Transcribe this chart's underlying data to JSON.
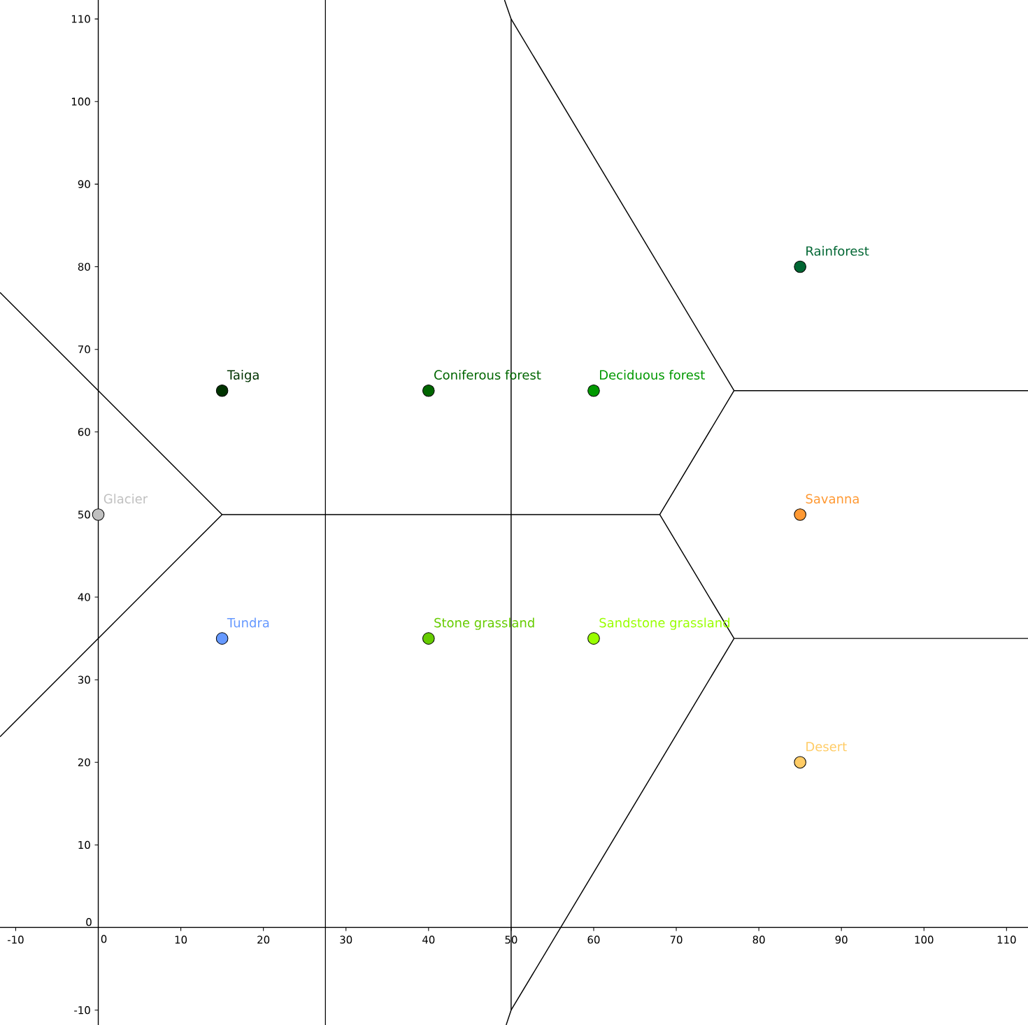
{
  "chart_data": {
    "type": "scatter",
    "xlim": [
      -11.9,
      112.6
    ],
    "ylim": [
      -11.8,
      112.3
    ],
    "xticks": [
      -10,
      0,
      10,
      20,
      30,
      40,
      50,
      60,
      70,
      80,
      90,
      100,
      110
    ],
    "yticks": [
      -10,
      0,
      10,
      20,
      30,
      40,
      50,
      60,
      70,
      80,
      90,
      100,
      110
    ],
    "marker": "circle",
    "series": [
      {
        "name": "Glacier",
        "color": "#c0c0c0",
        "x": [
          0
        ],
        "values": [
          50
        ]
      },
      {
        "name": "Taiga",
        "color": "#003300",
        "x": [
          15
        ],
        "values": [
          65
        ]
      },
      {
        "name": "Tundra",
        "color": "#6699ff",
        "x": [
          15
        ],
        "values": [
          35
        ]
      },
      {
        "name": "Coniferous forest",
        "color": "#006600",
        "x": [
          40
        ],
        "values": [
          65
        ]
      },
      {
        "name": "Stone grassland",
        "color": "#66cc00",
        "x": [
          40
        ],
        "values": [
          35
        ]
      },
      {
        "name": "Deciduous forest",
        "color": "#009900",
        "x": [
          60
        ],
        "values": [
          65
        ]
      },
      {
        "name": "Sandstone grassland",
        "color": "#99ff00",
        "x": [
          60
        ],
        "values": [
          35
        ]
      },
      {
        "name": "Rainforest",
        "color": "#006633",
        "x": [
          85
        ],
        "values": [
          80
        ]
      },
      {
        "name": "Savanna",
        "color": "#ff9933",
        "x": [
          85
        ],
        "values": [
          50
        ]
      },
      {
        "name": "Desert",
        "color": "#ffcc66",
        "x": [
          85
        ],
        "values": [
          20
        ]
      },
      {
        "type": "line",
        "marker": "none",
        "color": "#000000",
        "x": [
          -11.9,
          15,
          68,
          77,
          112.6
        ],
        "values": [
          76.9,
          50,
          50,
          65,
          65
        ]
      },
      {
        "type": "line",
        "marker": "none",
        "color": "#000000",
        "x": [
          -11.9,
          15
        ],
        "values": [
          23.1,
          50
        ]
      },
      {
        "type": "line",
        "marker": "none",
        "color": "#000000",
        "x": [
          68,
          77,
          112.6
        ],
        "values": [
          50,
          35,
          35
        ]
      },
      {
        "type": "line",
        "marker": "none",
        "color": "#000000",
        "x": [
          50,
          77
        ],
        "values": [
          110,
          65
        ]
      },
      {
        "type": "line",
        "marker": "none",
        "color": "#000000",
        "x": [
          49.2,
          50,
          50,
          49.4
        ],
        "values": [
          112.3,
          110,
          -10,
          -11.8
        ]
      },
      {
        "type": "line",
        "marker": "none",
        "color": "#000000",
        "x": [
          50,
          77
        ],
        "values": [
          -10,
          35
        ]
      }
    ],
    "ref_lines": [
      {
        "axis": "x",
        "value": 27.5,
        "color": "#000000"
      }
    ]
  }
}
